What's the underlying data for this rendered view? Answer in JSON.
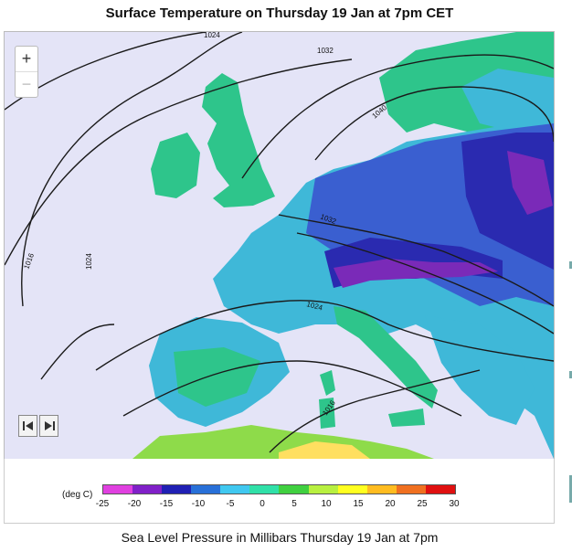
{
  "title": "Surface Temperature on Thursday 19 Jan at 7pm CET",
  "caption": "Sea Level Pressure in Millibars Thursday 19 Jan at 7pm",
  "zoom": {
    "in_label": "+",
    "out_label": "−"
  },
  "player": {
    "back_icon": "skip-back-icon",
    "forward_icon": "skip-forward-icon"
  },
  "isobars": {
    "labels": [
      "1024",
      "1032",
      "1040",
      "1032",
      "1024",
      "1016",
      "1024",
      "1016"
    ]
  },
  "legend": {
    "unit": "(deg C)",
    "ticks": [
      "-25",
      "-20",
      "-15",
      "-10",
      "-5",
      "0",
      "5",
      "10",
      "15",
      "20",
      "25",
      "30"
    ],
    "colors": [
      "#e040e0",
      "#8020c8",
      "#2020b4",
      "#2870d8",
      "#40c8f0",
      "#30e0a8",
      "#40d040",
      "#b8f040",
      "#ffff20",
      "#ffbc20",
      "#f07020",
      "#e01010"
    ]
  },
  "colors": {
    "sea": "#e4e4f7",
    "land_mild": "#2ec58b",
    "land_cool": "#3fb8d8",
    "land_cold": "#3a5fd0",
    "land_very_cold": "#2a2ab0",
    "alpine": "#7a2ab8",
    "africa_warm": "#8edb4a",
    "isobar": "#1a1a1a"
  }
}
